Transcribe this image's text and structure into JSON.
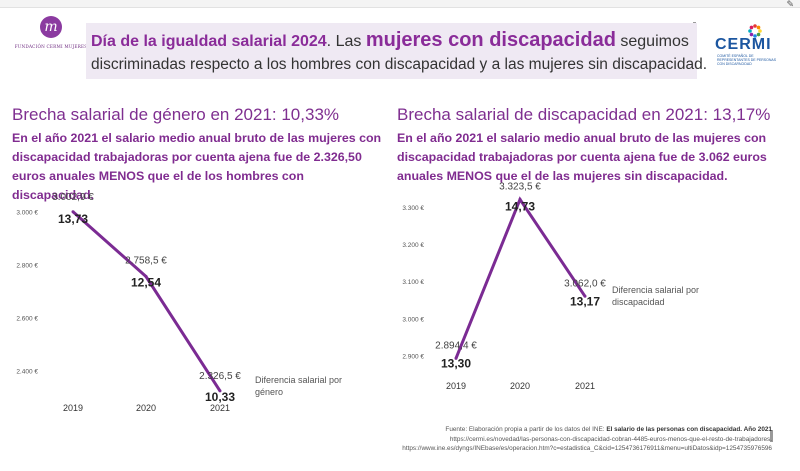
{
  "window": {
    "edit_icon": "edit-icon"
  },
  "logo_left": {
    "mark": "m",
    "text": "FUNDACIÓN CERMI MUJERES"
  },
  "banner": {
    "title": "Día de la igualdad salarial 2024",
    "part1": ". Las ",
    "highlight": "mujeres con discapacidad",
    "part2": " seguimos",
    "line2": "discriminadas respecto a los hombres con discapacidad y a las mujeres sin discapacidad."
  },
  "logo_right": {
    "word": "CERMI",
    "subtitle": "Comité Español de Representantes de Personas con Discapacidad",
    "colors": [
      "#e53935",
      "#fb8c00",
      "#fdd835",
      "#43a047",
      "#1e88e5",
      "#8e24aa",
      "#00acc1",
      "#d81b60"
    ]
  },
  "left_section": {
    "title": "Brecha salarial de género en 2021: 10,33%",
    "text": "En el año 2021 el salario medio anual bruto de las mujeres con discapacidad trabajadoras por cuenta ajena fue de 2.326,50 euros anuales MENOS que el de los hombres con discapacidad."
  },
  "right_section": {
    "title": "Brecha salarial de discapacidad en 2021: 13,17%",
    "text": "En el año 2021 el salario medio anual bruto de las mujeres con discapacidad trabajadoras por cuenta ajena fue de 3.062 euros anuales MENOS que el de las mujeres sin discapacidad."
  },
  "chart_data": [
    {
      "type": "line",
      "categories": [
        "2019",
        "2020",
        "2021"
      ],
      "series": [
        {
          "name": "Diferencia salarial por género",
          "values": [
            3002.9,
            2758.5,
            2326.5
          ],
          "value_labels": [
            "3.002,9 €",
            "2.758,5 €",
            "2.326,5 €"
          ],
          "pct_labels": [
            "13,73",
            "12,54",
            "10,33"
          ]
        }
      ],
      "yticks": [
        3000,
        2800,
        2600,
        2400
      ],
      "ytick_labels": [
        "3.000 €",
        "2.800 €",
        "2.600 €",
        "2.400 €"
      ],
      "ylim": [
        2330,
        3070
      ],
      "legend_lines": [
        "Diferencia salarial por",
        "género"
      ],
      "color": "#7b2b93"
    },
    {
      "type": "line",
      "categories": [
        "2019",
        "2020",
        "2021"
      ],
      "series": [
        {
          "name": "Diferencia salarial por discapacidad",
          "values": [
            2894.4,
            3323.5,
            3062.0
          ],
          "value_labels": [
            "2.894,4 €",
            "3.323,5 €",
            "3.062,0 €"
          ],
          "pct_labels": [
            "13,30",
            "14,73",
            "13,17"
          ]
        }
      ],
      "yticks": [
        3300,
        3200,
        3100,
        3000,
        2900
      ],
      "ytick_labels": [
        "3.300 €",
        "3.200 €",
        "3.100 €",
        "3.000 €",
        "2.900 €"
      ],
      "ylim": [
        2890,
        3330
      ],
      "legend_lines": [
        "Diferencia salarial por",
        "discapacidad"
      ],
      "color": "#7b2b93"
    }
  ],
  "source": {
    "prefix": "Fuente: Elaboración propia a partir de los datos  del INE: ",
    "bold": "El salario de las personas con discapacidad. Año 2021",
    "url1": "https://cermi.es/novedad/las-personas-con-discapacidad-cobran-4485-euros-menos-que-el-resto-de-trabajadores.",
    "url2": "https://www.ine.es/dyngs/INEbase/es/operacion.htm?c=estadistica_C&cid=1254736176911&menu=ultiDatos&idp=1254735976596"
  }
}
